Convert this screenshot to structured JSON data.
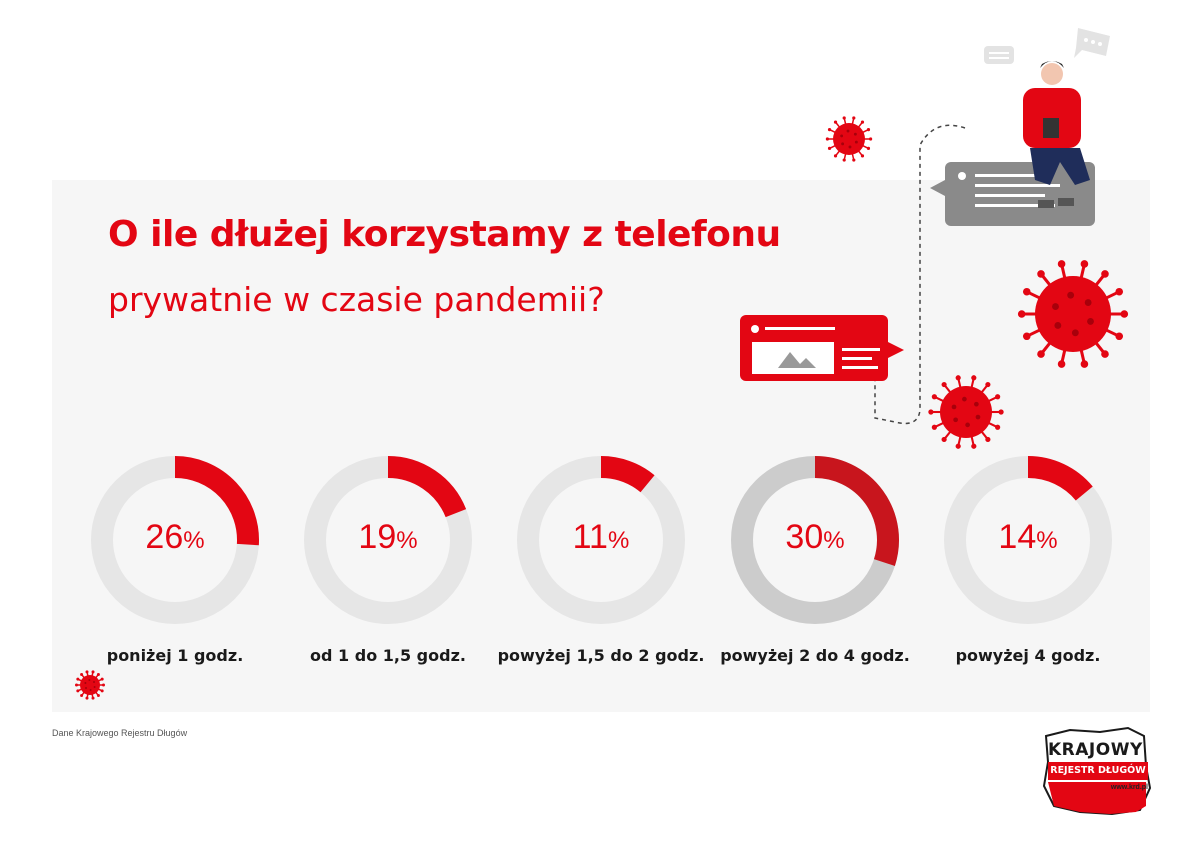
{
  "title": "O ile dłużej korzystamy z telefonu",
  "subtitle": "prywatnie w czasie pandemii?",
  "source": "Dane Krajowego Rejestru Długów",
  "logo": {
    "line1": "KRAJOWY",
    "line2": "REJESTR DŁUGÓW",
    "url": "www.krd.pl"
  },
  "colors": {
    "accent": "#e30613",
    "highlight": "#c8151d",
    "track": "#e6e6e6",
    "track_highlight": "#cccccc",
    "panel": "#f6f6f6"
  },
  "icons": [
    "virus-icon",
    "speech-bubble-icon",
    "message-card-icon",
    "person-with-phone-icon"
  ],
  "chart_data": {
    "type": "pie",
    "variant": "donut",
    "unit": "%",
    "categories": [
      "poniżej 1 godz.",
      "od 1 do 1,5 godz.",
      "powyżej 1,5 do 2 godz.",
      "powyżej 2 do 4 godz.",
      "powyżej 4 godz."
    ],
    "values": [
      26,
      19,
      11,
      30,
      14
    ],
    "labels": [
      "26",
      "19",
      "11",
      "30",
      "14"
    ],
    "highlighted_index": 3
  }
}
